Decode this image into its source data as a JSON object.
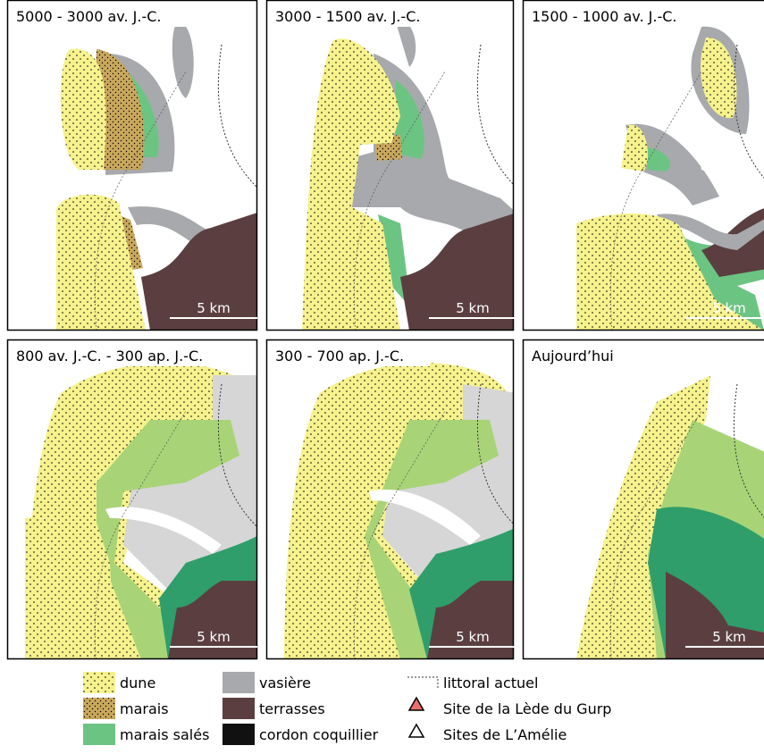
{
  "panels": [
    {
      "title": "5000 - 3000 av. J.-C.",
      "scale": "5 km"
    },
    {
      "title": "3000 - 1500 av. J.-C.",
      "scale": "5 km"
    },
    {
      "title": "1500 - 1000 av. J.-C.",
      "scale": "5 km"
    },
    {
      "title": "800 av. J.-C. - 300 ap. J.-C.",
      "scale": "5 km"
    },
    {
      "title": "300 - 700 ap. J.-C.",
      "scale": "5 km"
    },
    {
      "title": "Aujourd’hui",
      "scale": "5 km"
    }
  ],
  "legend": [
    {
      "label": "dune"
    },
    {
      "label": "marais"
    },
    {
      "label": "marais salés"
    },
    {
      "label": "vasière"
    },
    {
      "label": "terrasses"
    },
    {
      "label": "cordon coquillier"
    },
    {
      "label": "littoral actuel"
    },
    {
      "label": "Site de la Lède du Gurp"
    },
    {
      "label": "Sites de  L’Amélie"
    }
  ]
}
